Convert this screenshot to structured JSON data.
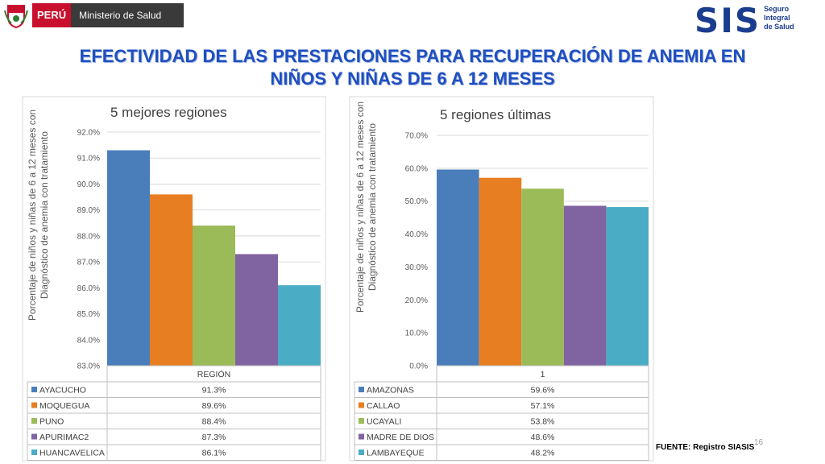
{
  "header": {
    "country": "PERÚ",
    "ministry": "Ministerio de Salud",
    "sis_logo": "SIS",
    "sis_line1": "Seguro",
    "sis_line2": "Integral",
    "sis_line3": "de Salud"
  },
  "title_line1": "EFECTIVIDAD DE LAS PRESTACIONES PARA RECUPERACIÓN DE ANEMIA EN",
  "title_line2": "NIÑOS Y NIÑAS DE 6 A 12 MESES",
  "colors": [
    "#4a7ebb",
    "#e87e22",
    "#9bbb59",
    "#8064a2",
    "#4bacc6"
  ],
  "chart_data": [
    {
      "type": "bar",
      "title": "5 mejores regiones",
      "ylabel_line1": "Porcentaje de niños y niñas de 6 a 12 meses con",
      "ylabel_line2": "Diagnóstico de anemia con tratamiento",
      "xlabel": "REGIÓN",
      "ylim": [
        83.0,
        92.0
      ],
      "yticks": [
        "92.0%",
        "91.0%",
        "90.0%",
        "89.0%",
        "88.0%",
        "87.0%",
        "86.0%",
        "85.0%",
        "84.0%",
        "83.0%"
      ],
      "series": [
        {
          "name": "AYACUCHO",
          "value": 91.3,
          "label": "91.3%"
        },
        {
          "name": "MOQUEGUA",
          "value": 89.6,
          "label": "89.6%"
        },
        {
          "name": "PUNO",
          "value": 88.4,
          "label": "88.4%"
        },
        {
          "name": "APURIMAC2",
          "value": 87.3,
          "label": "87.3%"
        },
        {
          "name": "HUANCAVELICA",
          "value": 86.1,
          "label": "86.1%"
        }
      ]
    },
    {
      "type": "bar",
      "title": "5 regiones últimas",
      "ylabel_line1": "Porcentaje de niños y niñas de 6 a 12 meses con",
      "ylabel_line2": "Diagnóstico de anemia con tratamiento",
      "xlabel": "1",
      "ylim": [
        0.0,
        70.0
      ],
      "yticks": [
        "70.0%",
        "60.0%",
        "50.0%",
        "40.0%",
        "30.0%",
        "20.0%",
        "10.0%",
        "0.0%"
      ],
      "series": [
        {
          "name": "AMAZONAS",
          "value": 59.6,
          "label": "59.6%"
        },
        {
          "name": "CALLAO",
          "value": 57.1,
          "label": "57.1%"
        },
        {
          "name": "UCAYALI",
          "value": 53.8,
          "label": "53.8%"
        },
        {
          "name": "MADRE DE DIOS",
          "value": 48.6,
          "label": "48.6%"
        },
        {
          "name": "LAMBAYEQUE",
          "value": 48.2,
          "label": "48.2%"
        }
      ]
    }
  ],
  "footer": {
    "source": "FUENTE: Registro SIASIS",
    "page": "16"
  }
}
